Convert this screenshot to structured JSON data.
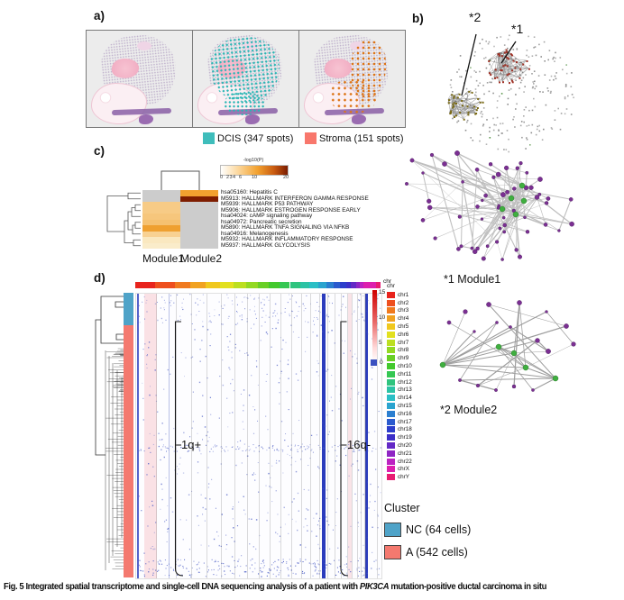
{
  "panel_a": {
    "label": "a)",
    "dcis_spot_color": "#2ab6b4",
    "stroma_spot_color": "#dd7517",
    "legend": [
      {
        "label": "DCIS (347 spots)",
        "color": "#3fbdbb"
      },
      {
        "label": "Stroma (151 spots)",
        "color": "#f8776c"
      }
    ]
  },
  "panel_b": {
    "label": "b)",
    "callouts": {
      "c2": "*2",
      "c1": "*1"
    },
    "background_node_color": "#8b8b8b",
    "cluster1_color": "#9e2f23",
    "cluster2_color": "#7a6a14",
    "module1": {
      "label": "*1 Module1",
      "node_color": "#7b2f92",
      "hub_color": "#3faf3f"
    },
    "module2": {
      "label": "*2 Module2",
      "node_color": "#7b2f92",
      "hub_color": "#3faf3f"
    }
  },
  "panel_c": {
    "label": "c)",
    "colorbar": {
      "title": "-log10(P)",
      "ticks": [
        0,
        2,
        3,
        4,
        6,
        10,
        20
      ],
      "max": 20
    },
    "columns": [
      "Module1",
      "Module2"
    ],
    "rows": [
      {
        "id": "hsa05160",
        "label": "hsa05160: Hepatitis C",
        "module1": "#cccccc",
        "module2": "#f2a12f"
      },
      {
        "id": "M5913",
        "label": "M5913: HALLMARK INTERFERON GAMMA RESPONSE",
        "module1": "#cccccc",
        "module2": "#7e1d00"
      },
      {
        "id": "M5939",
        "label": "M5939: HALLMARK P53 PATHWAY",
        "module1": "#f7cb86",
        "module2": "#cccccc"
      },
      {
        "id": "M5906",
        "label": "M5906: HALLMARK ESTROGEN RESPONSE EARLY",
        "module1": "#f7cb86",
        "module2": "#cccccc"
      },
      {
        "id": "hsa04024",
        "label": "hsa04024: cAMP signaling pathway",
        "module1": "#f6c67c",
        "module2": "#cccccc"
      },
      {
        "id": "hsa04972",
        "label": "hsa04972: Pancreatic secretion",
        "module1": "#f5c171",
        "module2": "#cccccc"
      },
      {
        "id": "M5890",
        "label": "M5890: HALLMARK TNFA SIGNALING VIA NFKB",
        "module1": "#efa030",
        "module2": "#cccccc"
      },
      {
        "id": "hsa04916",
        "label": "hsa04916: Melanogenesis",
        "module1": "#f8d192",
        "module2": "#cccccc"
      },
      {
        "id": "M5932",
        "label": "M5932: HALLMARK INFLAMMATORY RESPONSE",
        "module1": "#fae8c0",
        "module2": "#cccccc"
      },
      {
        "id": "M5937",
        "label": "M5937: HALLMARK GLYCOLYSIS",
        "module1": "#faecca",
        "module2": "#cccccc"
      }
    ]
  },
  "panel_d": {
    "label": "d)",
    "chr_bar_label": "chr",
    "value_scale": {
      "ticks": [
        15,
        10,
        5
      ],
      "zero_label": "0",
      "zero_color": "#3a50c0",
      "high_color": "#cf0000"
    },
    "chr_legend_title": "chr",
    "dot_color": "#4a5cc5",
    "chromosomes": [
      {
        "name": "chr1",
        "color": "#e8241d",
        "w": 22
      },
      {
        "name": "chr2",
        "color": "#ee4f1e",
        "w": 21.5
      },
      {
        "name": "chr3",
        "color": "#f07a1f",
        "w": 17.5
      },
      {
        "name": "chr4",
        "color": "#f1a221",
        "w": 16.8
      },
      {
        "name": "chr5",
        "color": "#f0c81e",
        "w": 16
      },
      {
        "name": "chr6",
        "color": "#e2e01f",
        "w": 15
      },
      {
        "name": "chr7",
        "color": "#bcdf20",
        "w": 14
      },
      {
        "name": "chr8",
        "color": "#93d922",
        "w": 12.8
      },
      {
        "name": "chr9",
        "color": "#69cf26",
        "w": 12.2
      },
      {
        "name": "chr10",
        "color": "#43c92d",
        "w": 11.8
      },
      {
        "name": "chr11",
        "color": "#35c753",
        "w": 11.9
      },
      {
        "name": "chr12",
        "color": "#2fc47e",
        "w": 11.7
      },
      {
        "name": "chr13",
        "color": "#2cc3a5",
        "w": 10
      },
      {
        "name": "chr14",
        "color": "#2bbfc6",
        "w": 9.4
      },
      {
        "name": "chr15",
        "color": "#2ba4cf",
        "w": 9
      },
      {
        "name": "chr16",
        "color": "#2b7fd0",
        "w": 8
      },
      {
        "name": "chr17",
        "color": "#2b5bce",
        "w": 7.3
      },
      {
        "name": "chr18",
        "color": "#2c3ecb",
        "w": 7
      },
      {
        "name": "chr19",
        "color": "#3c2fc8",
        "w": 5.2
      },
      {
        "name": "chr20",
        "color": "#6329c6",
        "w": 5.6
      },
      {
        "name": "chr21",
        "color": "#8f25c4",
        "w": 4.1
      },
      {
        "name": "chr22",
        "color": "#bc22c2",
        "w": 4.5
      },
      {
        "name": "chrX",
        "color": "#dd1fae",
        "w": 13.7
      },
      {
        "name": "chrY",
        "color": "#e81c72",
        "w": 5
      }
    ],
    "annotations": {
      "gain": "1q+",
      "loss": "16q-"
    },
    "cluster_legend": {
      "title": "Cluster",
      "items": [
        {
          "label": "NC (64 cells)",
          "color": "#4fa3c8"
        },
        {
          "label": "A (542 cells)",
          "color": "#f4796f"
        }
      ]
    }
  },
  "caption": {
    "prefix": "Fig. 5",
    "before_gene": " Integrated spatial transcriptome and single-cell DNA sequencing analysis of a patient with ",
    "gene": "PIK3CA",
    "after_gene": " mutation-positive ductal carcinoma in situ"
  }
}
